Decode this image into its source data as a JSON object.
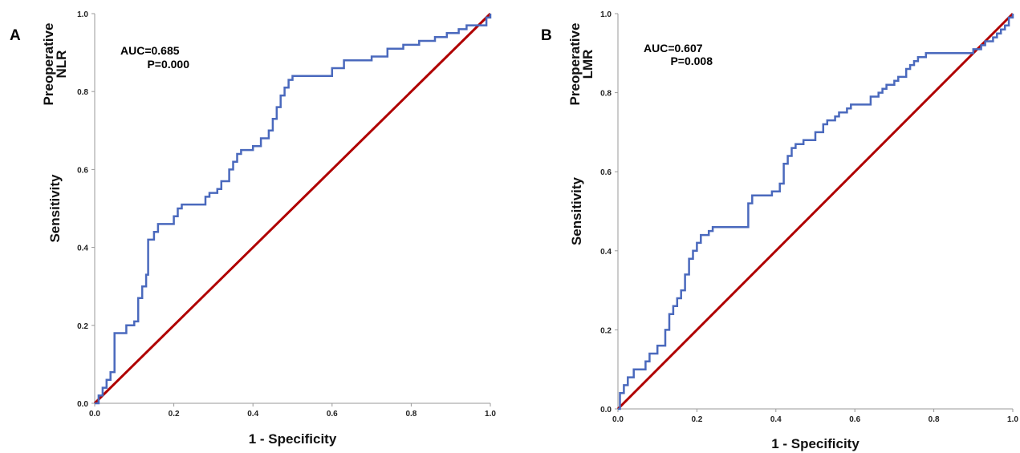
{
  "colors": {
    "roc": "#4a69bd",
    "reference": "#b00000",
    "axis": "#999999"
  },
  "chart_data": [
    {
      "type": "line",
      "panel_label": "A",
      "xlabel": "1 - Specificity",
      "ylabel": "Sensitivity",
      "ylabel_top": [
        "Preoperative",
        "NLR"
      ],
      "annotations": [
        "AUC=0.685",
        "P=0.000"
      ],
      "xlim": [
        0,
        1
      ],
      "ylim": [
        0,
        1
      ],
      "xticks": [
        "0.0",
        "0.2",
        "0.4",
        "0.6",
        "0.8",
        "1.0"
      ],
      "yticks": [
        "0.0",
        "0.2",
        "0.4",
        "0.6",
        "0.8",
        "1.0"
      ],
      "grid": false,
      "series": [
        {
          "style": "step",
          "x": [
            0,
            0.01,
            0.02,
            0.03,
            0.04,
            0.05,
            0.08,
            0.1,
            0.11,
            0.12,
            0.13,
            0.135,
            0.15,
            0.16,
            0.17,
            0.2,
            0.21,
            0.22,
            0.23,
            0.28,
            0.29,
            0.3,
            0.31,
            0.32,
            0.33,
            0.34,
            0.35,
            0.36,
            0.37,
            0.38,
            0.4,
            0.41,
            0.42,
            0.44,
            0.45,
            0.46,
            0.47,
            0.48,
            0.49,
            0.5,
            0.51,
            0.54,
            0.6,
            0.63,
            0.7,
            0.74,
            0.78,
            0.82,
            0.86,
            0.89,
            0.92,
            0.94,
            0.96,
            0.98,
            0.99,
            1.0
          ],
          "y": [
            0,
            0.02,
            0.04,
            0.06,
            0.08,
            0.18,
            0.2,
            0.21,
            0.27,
            0.3,
            0.33,
            0.42,
            0.44,
            0.46,
            0.46,
            0.48,
            0.5,
            0.51,
            0.51,
            0.53,
            0.54,
            0.54,
            0.55,
            0.57,
            0.57,
            0.6,
            0.62,
            0.64,
            0.65,
            0.65,
            0.66,
            0.66,
            0.68,
            0.7,
            0.73,
            0.76,
            0.79,
            0.81,
            0.83,
            0.84,
            0.84,
            0.84,
            0.86,
            0.88,
            0.89,
            0.91,
            0.92,
            0.93,
            0.94,
            0.95,
            0.96,
            0.97,
            0.97,
            0.97,
            0.99,
            1.0
          ]
        },
        {
          "style": "line",
          "x": [
            0,
            1
          ],
          "y": [
            0,
            1
          ]
        }
      ]
    },
    {
      "type": "line",
      "panel_label": "B",
      "xlabel": "1 - Specificity",
      "ylabel": "Sensitivity",
      "ylabel_top": [
        "Preoperative",
        "LMR"
      ],
      "annotations": [
        "AUC=0.607",
        "P=0.008"
      ],
      "xlim": [
        0,
        1
      ],
      "ylim": [
        0,
        1
      ],
      "xticks": [
        "0.0",
        "0.2",
        "0.4",
        "0.6",
        "0.8",
        "1.0"
      ],
      "yticks": [
        "0.0",
        "0.2",
        "0.4",
        "0.6",
        "0.8",
        "1.0"
      ],
      "grid": false,
      "series": [
        {
          "style": "step",
          "x": [
            0,
            0.005,
            0.015,
            0.025,
            0.04,
            0.07,
            0.08,
            0.1,
            0.12,
            0.13,
            0.14,
            0.15,
            0.16,
            0.17,
            0.18,
            0.19,
            0.2,
            0.21,
            0.23,
            0.24,
            0.26,
            0.28,
            0.3,
            0.33,
            0.34,
            0.35,
            0.36,
            0.37,
            0.39,
            0.41,
            0.42,
            0.43,
            0.44,
            0.45,
            0.47,
            0.5,
            0.52,
            0.53,
            0.55,
            0.56,
            0.58,
            0.59,
            0.61,
            0.64,
            0.66,
            0.67,
            0.68,
            0.7,
            0.71,
            0.73,
            0.74,
            0.75,
            0.76,
            0.78,
            0.8,
            0.82,
            0.84,
            0.86,
            0.88,
            0.9,
            0.92,
            0.93,
            0.94,
            0.95,
            0.96,
            0.97,
            0.98,
            0.99,
            1.0
          ],
          "y": [
            0,
            0.04,
            0.06,
            0.08,
            0.1,
            0.12,
            0.14,
            0.16,
            0.2,
            0.24,
            0.26,
            0.28,
            0.3,
            0.34,
            0.38,
            0.4,
            0.42,
            0.44,
            0.45,
            0.46,
            0.46,
            0.46,
            0.46,
            0.52,
            0.54,
            0.54,
            0.54,
            0.54,
            0.55,
            0.57,
            0.62,
            0.64,
            0.66,
            0.67,
            0.68,
            0.7,
            0.72,
            0.73,
            0.74,
            0.75,
            0.76,
            0.77,
            0.77,
            0.79,
            0.8,
            0.81,
            0.82,
            0.83,
            0.84,
            0.86,
            0.87,
            0.88,
            0.89,
            0.9,
            0.9,
            0.9,
            0.9,
            0.9,
            0.9,
            0.91,
            0.92,
            0.93,
            0.93,
            0.94,
            0.95,
            0.96,
            0.97,
            0.99,
            1.0
          ]
        },
        {
          "style": "line",
          "x": [
            0,
            1
          ],
          "y": [
            0,
            1
          ]
        }
      ]
    }
  ]
}
